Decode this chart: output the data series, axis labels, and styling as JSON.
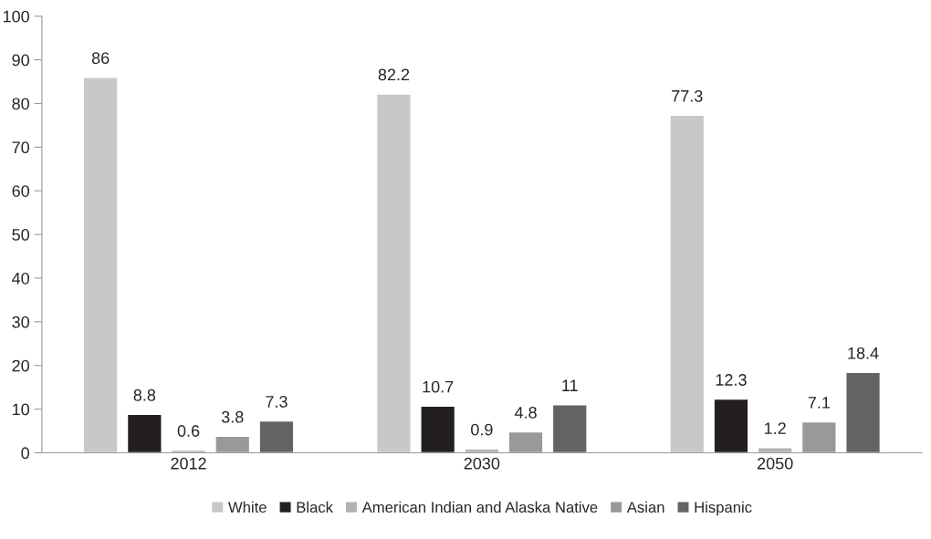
{
  "chart_data": {
    "type": "bar",
    "categories": [
      "2012",
      "2030",
      "2050"
    ],
    "series": [
      {
        "name": "White",
        "color": "#c8c8c8",
        "values": [
          86,
          82.2,
          77.3
        ]
      },
      {
        "name": "Black",
        "color": "#231f20",
        "values": [
          8.8,
          10.7,
          12.3
        ]
      },
      {
        "name": "American Indian and Alaska Native",
        "color": "#b3b3b3",
        "values": [
          0.6,
          0.9,
          1.2
        ]
      },
      {
        "name": "Asian",
        "color": "#999999",
        "values": [
          3.8,
          4.8,
          7.1
        ]
      },
      {
        "name": "Hispanic",
        "color": "#636363",
        "values": [
          7.3,
          11,
          18.4
        ]
      }
    ],
    "ylim": [
      0,
      100
    ],
    "yticks": [
      0,
      10,
      20,
      30,
      40,
      50,
      60,
      70,
      80,
      90,
      100
    ],
    "grid": false,
    "legend": "bottom",
    "data_labels": true
  }
}
